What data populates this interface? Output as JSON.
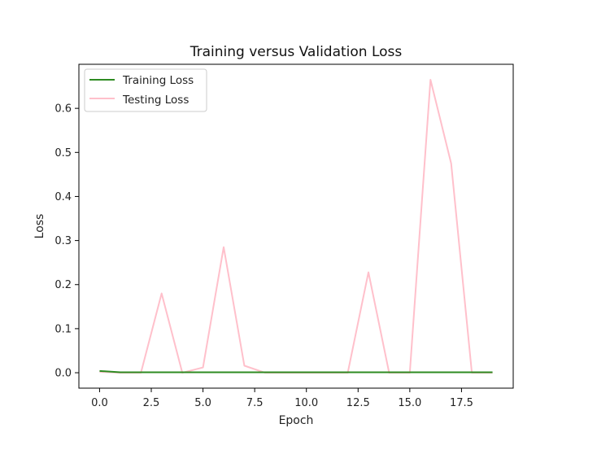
{
  "chart_data": {
    "type": "line",
    "title": "Training versus Validation Loss",
    "xlabel": "Epoch",
    "ylabel": "Loss",
    "xlim": [
      -1,
      20
    ],
    "ylim": [
      -0.035,
      0.7
    ],
    "xticks": [
      0.0,
      2.5,
      5.0,
      7.5,
      10.0,
      12.5,
      15.0,
      17.5
    ],
    "xtick_labels": [
      "0.0",
      "2.5",
      "5.0",
      "7.5",
      "10.0",
      "12.5",
      "15.0",
      "17.5"
    ],
    "yticks": [
      0.0,
      0.1,
      0.2,
      0.3,
      0.4,
      0.5,
      0.6
    ],
    "ytick_labels": [
      "0.0",
      "0.1",
      "0.2",
      "0.3",
      "0.4",
      "0.5",
      "0.6"
    ],
    "grid": false,
    "legend_position": "upper-left",
    "x": [
      0,
      1,
      2,
      3,
      4,
      5,
      6,
      7,
      8,
      9,
      10,
      11,
      12,
      13,
      14,
      15,
      16,
      17,
      18,
      19
    ],
    "series": [
      {
        "name": "Training Loss",
        "color": "#2e8b22",
        "values": [
          0.004,
          0.001,
          0.001,
          0.001,
          0.001,
          0.001,
          0.001,
          0.001,
          0.001,
          0.001,
          0.001,
          0.001,
          0.001,
          0.001,
          0.001,
          0.001,
          0.001,
          0.001,
          0.001,
          0.001
        ]
      },
      {
        "name": "Testing Loss",
        "color": "#ffc0cb",
        "values": [
          0.002,
          0.0,
          0.0,
          0.18,
          0.0,
          0.012,
          0.285,
          0.016,
          0.0,
          0.0,
          0.0,
          0.0,
          0.0,
          0.228,
          0.0,
          0.0,
          0.665,
          0.475,
          0.0,
          0.0
        ]
      }
    ]
  }
}
